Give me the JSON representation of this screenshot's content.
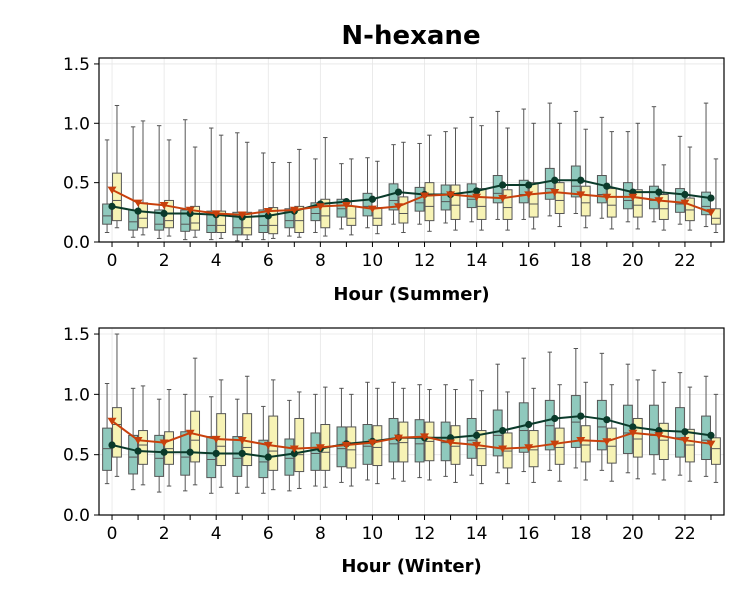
{
  "figure": {
    "title": "N-hexane"
  },
  "colors": {
    "box_a": "#8fc9bd",
    "box_b": "#f7f3b5",
    "box_edge": "#555555",
    "line_a": "#0a3a2a",
    "line_b": "#c8400c"
  },
  "chart_data": [
    {
      "type": "box",
      "xlabel": "Hour (Summer)",
      "ylabel": "",
      "ylim": [
        0,
        1.55
      ],
      "yticks": [
        0.0,
        0.5,
        1.0,
        1.5
      ],
      "xticks": [
        0,
        2,
        4,
        6,
        8,
        10,
        12,
        14,
        16,
        18,
        20,
        22
      ],
      "grid": true,
      "x": [
        0,
        1,
        2,
        3,
        4,
        5,
        6,
        7,
        8,
        9,
        10,
        11,
        12,
        13,
        14,
        15,
        16,
        17,
        18,
        19,
        20,
        21,
        22,
        23
      ],
      "series": [
        {
          "box_color": "box_a",
          "line_color": "line_a",
          "marker": "circle",
          "mean": [
            0.3,
            0.26,
            0.24,
            0.24,
            0.23,
            0.21,
            0.22,
            0.26,
            0.32,
            0.34,
            0.36,
            0.42,
            0.4,
            0.4,
            0.43,
            0.48,
            0.48,
            0.52,
            0.52,
            0.47,
            0.42,
            0.42,
            0.4,
            0.37
          ],
          "q1": [
            0.15,
            0.1,
            0.1,
            0.09,
            0.08,
            0.06,
            0.08,
            0.12,
            0.18,
            0.21,
            0.22,
            0.27,
            0.26,
            0.27,
            0.29,
            0.33,
            0.33,
            0.36,
            0.38,
            0.33,
            0.28,
            0.28,
            0.25,
            0.23
          ],
          "median": [
            0.22,
            0.17,
            0.15,
            0.15,
            0.14,
            0.12,
            0.14,
            0.18,
            0.24,
            0.28,
            0.3,
            0.35,
            0.33,
            0.34,
            0.36,
            0.41,
            0.4,
            0.45,
            0.47,
            0.4,
            0.35,
            0.35,
            0.32,
            0.3
          ],
          "q3": [
            0.32,
            0.27,
            0.27,
            0.27,
            0.26,
            0.25,
            0.27,
            0.28,
            0.33,
            0.36,
            0.41,
            0.49,
            0.46,
            0.48,
            0.49,
            0.56,
            0.52,
            0.62,
            0.64,
            0.56,
            0.5,
            0.47,
            0.45,
            0.42
          ],
          "whisker_low": [
            0.08,
            0.04,
            0.03,
            0.02,
            0.02,
            0.01,
            0.02,
            0.05,
            0.08,
            0.11,
            0.12,
            0.15,
            0.15,
            0.16,
            0.17,
            0.19,
            0.19,
            0.22,
            0.24,
            0.2,
            0.17,
            0.17,
            0.15,
            0.13
          ],
          "whisker_high": [
            0.86,
            0.97,
            0.98,
            1.03,
            0.96,
            0.92,
            0.75,
            0.67,
            0.7,
            0.66,
            0.71,
            0.82,
            0.83,
            0.93,
            1.05,
            1.1,
            1.12,
            1.17,
            1.1,
            1.05,
            0.93,
            1.14,
            0.89,
            1.17
          ]
        },
        {
          "box_color": "box_b",
          "line_color": "line_b",
          "marker": "triangle-down",
          "mean": [
            0.44,
            0.33,
            0.31,
            0.27,
            0.24,
            0.23,
            0.26,
            0.27,
            0.3,
            0.31,
            0.28,
            0.3,
            0.39,
            0.4,
            0.38,
            0.37,
            0.4,
            0.42,
            0.4,
            0.38,
            0.38,
            0.35,
            0.33,
            0.25
          ],
          "q1": [
            0.18,
            0.12,
            0.12,
            0.1,
            0.08,
            0.06,
            0.07,
            0.08,
            0.12,
            0.14,
            0.14,
            0.16,
            0.18,
            0.19,
            0.19,
            0.19,
            0.21,
            0.24,
            0.22,
            0.21,
            0.21,
            0.19,
            0.18,
            0.15
          ],
          "median": [
            0.35,
            0.2,
            0.18,
            0.16,
            0.14,
            0.12,
            0.14,
            0.18,
            0.22,
            0.2,
            0.2,
            0.24,
            0.3,
            0.31,
            0.3,
            0.29,
            0.32,
            0.35,
            0.33,
            0.31,
            0.31,
            0.28,
            0.27,
            0.2
          ],
          "q3": [
            0.58,
            0.33,
            0.35,
            0.3,
            0.26,
            0.25,
            0.29,
            0.3,
            0.36,
            0.3,
            0.29,
            0.38,
            0.5,
            0.48,
            0.45,
            0.44,
            0.5,
            0.5,
            0.47,
            0.45,
            0.44,
            0.4,
            0.37,
            0.28
          ],
          "whisker_low": [
            0.12,
            0.06,
            0.05,
            0.04,
            0.03,
            0.02,
            0.03,
            0.04,
            0.05,
            0.06,
            0.07,
            0.08,
            0.09,
            0.1,
            0.1,
            0.1,
            0.11,
            0.13,
            0.12,
            0.11,
            0.11,
            0.1,
            0.1,
            0.08
          ],
          "whisker_high": [
            1.15,
            1.02,
            0.86,
            0.8,
            0.9,
            0.84,
            0.67,
            0.78,
            0.88,
            0.7,
            0.68,
            0.84,
            0.9,
            0.96,
            0.98,
            0.96,
            1.0,
            1.0,
            0.95,
            0.93,
            1.0,
            0.65,
            0.8,
            0.7
          ]
        }
      ]
    },
    {
      "type": "box",
      "xlabel": "Hour (Winter)",
      "ylabel": "",
      "ylim": [
        0,
        1.55
      ],
      "yticks": [
        0.0,
        0.5,
        1.0,
        1.5
      ],
      "xticks": [
        0,
        2,
        4,
        6,
        8,
        10,
        12,
        14,
        16,
        18,
        20,
        22
      ],
      "grid": true,
      "x": [
        0,
        1,
        2,
        3,
        4,
        5,
        6,
        7,
        8,
        9,
        10,
        11,
        12,
        13,
        14,
        15,
        16,
        17,
        18,
        19,
        20,
        21,
        22,
        23
      ],
      "series": [
        {
          "box_color": "box_a",
          "line_color": "line_a",
          "marker": "circle",
          "mean": [
            0.58,
            0.53,
            0.52,
            0.52,
            0.51,
            0.51,
            0.48,
            0.51,
            0.55,
            0.59,
            0.61,
            0.64,
            0.64,
            0.64,
            0.66,
            0.7,
            0.75,
            0.8,
            0.82,
            0.79,
            0.73,
            0.7,
            0.69,
            0.66
          ],
          "q1": [
            0.37,
            0.34,
            0.32,
            0.33,
            0.31,
            0.32,
            0.31,
            0.33,
            0.37,
            0.4,
            0.42,
            0.44,
            0.44,
            0.45,
            0.47,
            0.49,
            0.52,
            0.54,
            0.56,
            0.54,
            0.51,
            0.5,
            0.48,
            0.46
          ],
          "median": [
            0.55,
            0.48,
            0.47,
            0.48,
            0.46,
            0.47,
            0.44,
            0.47,
            0.51,
            0.55,
            0.57,
            0.59,
            0.59,
            0.6,
            0.62,
            0.66,
            0.7,
            0.74,
            0.77,
            0.73,
            0.68,
            0.66,
            0.64,
            0.62
          ],
          "q3": [
            0.72,
            0.66,
            0.66,
            0.69,
            0.65,
            0.65,
            0.62,
            0.63,
            0.68,
            0.73,
            0.75,
            0.8,
            0.79,
            0.77,
            0.8,
            0.87,
            0.93,
            0.95,
            0.99,
            0.95,
            0.91,
            0.91,
            0.89,
            0.82
          ],
          "whisker_low": [
            0.26,
            0.21,
            0.19,
            0.2,
            0.18,
            0.18,
            0.18,
            0.2,
            0.24,
            0.27,
            0.29,
            0.3,
            0.31,
            0.32,
            0.33,
            0.35,
            0.36,
            0.37,
            0.39,
            0.37,
            0.35,
            0.34,
            0.33,
            0.32
          ],
          "whisker_high": [
            1.09,
            1.05,
            0.96,
            1.0,
            0.98,
            0.96,
            0.9,
            0.95,
            1.0,
            1.05,
            1.1,
            1.1,
            1.08,
            1.08,
            1.12,
            1.25,
            1.3,
            1.35,
            1.38,
            1.34,
            1.25,
            1.2,
            1.18,
            1.15
          ]
        },
        {
          "box_color": "box_b",
          "line_color": "line_b",
          "marker": "triangle-down",
          "mean": [
            0.78,
            0.62,
            0.6,
            0.68,
            0.63,
            0.62,
            0.58,
            0.55,
            0.56,
            0.58,
            0.6,
            0.64,
            0.65,
            0.6,
            0.58,
            0.55,
            0.56,
            0.59,
            0.62,
            0.61,
            0.68,
            0.66,
            0.62,
            0.59
          ],
          "q1": [
            0.48,
            0.42,
            0.42,
            0.44,
            0.41,
            0.41,
            0.37,
            0.36,
            0.37,
            0.39,
            0.41,
            0.44,
            0.45,
            0.42,
            0.41,
            0.39,
            0.4,
            0.42,
            0.44,
            0.43,
            0.48,
            0.46,
            0.44,
            0.42
          ],
          "median": [
            0.75,
            0.58,
            0.55,
            0.62,
            0.57,
            0.56,
            0.53,
            0.5,
            0.52,
            0.54,
            0.56,
            0.6,
            0.61,
            0.57,
            0.55,
            0.53,
            0.54,
            0.56,
            0.58,
            0.57,
            0.63,
            0.62,
            0.58,
            0.55
          ],
          "q3": [
            0.89,
            0.7,
            0.69,
            0.86,
            0.84,
            0.84,
            0.82,
            0.8,
            0.75,
            0.73,
            0.74,
            0.77,
            0.77,
            0.74,
            0.7,
            0.68,
            0.7,
            0.72,
            0.74,
            0.72,
            0.8,
            0.76,
            0.71,
            0.64
          ],
          "whisker_low": [
            0.32,
            0.25,
            0.24,
            0.25,
            0.23,
            0.23,
            0.21,
            0.22,
            0.23,
            0.24,
            0.26,
            0.28,
            0.29,
            0.27,
            0.26,
            0.26,
            0.27,
            0.28,
            0.29,
            0.28,
            0.3,
            0.29,
            0.28,
            0.27
          ],
          "whisker_high": [
            1.5,
            1.07,
            1.04,
            1.3,
            1.12,
            1.15,
            1.12,
            1.02,
            1.06,
            1.0,
            1.05,
            1.05,
            1.04,
            1.04,
            1.03,
            1.02,
            1.05,
            1.08,
            1.1,
            1.08,
            1.12,
            1.1,
            1.06,
            1.0
          ]
        }
      ]
    }
  ]
}
